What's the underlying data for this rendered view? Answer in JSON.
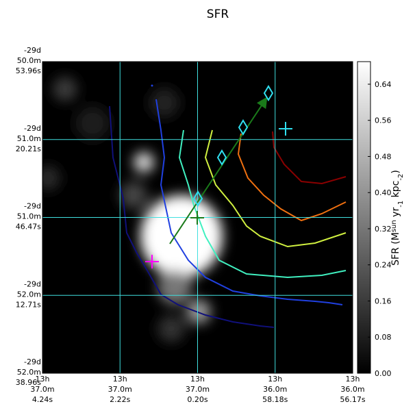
{
  "chart_data": {
    "type": "image",
    "title": "SFR",
    "x_tick_labels": [
      [
        "13h",
        "37.0m",
        "4.24s"
      ],
      [
        "13h",
        "37.0m",
        "2.22s"
      ],
      [
        "13h",
        "37.0m",
        "0.20s"
      ],
      [
        "13h",
        "36.0m",
        "58.18s"
      ],
      [
        "13h",
        "36.0m",
        "56.17s"
      ]
    ],
    "y_tick_labels": [
      [
        "-29d",
        "50.0m",
        "53.96s"
      ],
      [
        "-29d",
        "51.0m",
        "20.21s"
      ],
      [
        "-29d",
        "51.0m",
        "46.47s"
      ],
      [
        "-29d",
        "52.0m",
        "12.71s"
      ],
      [
        "-29d",
        "52.0m",
        "38.96s"
      ]
    ],
    "grid": true,
    "grid_color": "#40e0e0",
    "colormap": [
      "#000000",
      "#ffffff"
    ],
    "colorbar": {
      "label": [
        "SFR (M",
        "sun",
        " yr",
        "-1",
        " kpc",
        "-2",
        ")"
      ],
      "lim": [
        0,
        0.69
      ],
      "ticks": [
        {
          "value": 0,
          "label": "0.00"
        },
        0.08,
        0.16,
        0.24,
        0.32,
        {
          "value": 0.4,
          "label": "0.40"
        },
        0.48,
        0.56,
        0.64
      ]
    }
  }
}
